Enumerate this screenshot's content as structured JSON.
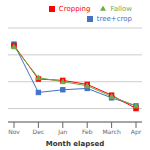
{
  "chart_data": {
    "type": "line",
    "categories": [
      "Nov",
      "Dec",
      "Jan",
      "Feb",
      "March",
      "Apr"
    ],
    "series": [
      {
        "name": "tree+crop",
        "color": "#4472C4",
        "marker": "square",
        "values": [
          98,
          62,
          64,
          65,
          58,
          52
        ]
      },
      {
        "name": "Cropping",
        "color": "#FF0000",
        "marker": "square",
        "values": [
          97,
          72,
          71,
          68,
          60,
          50
        ]
      },
      {
        "name": "Fallow",
        "color": "#70AD47",
        "marker": "triangle",
        "values": [
          96,
          73,
          70,
          67,
          59,
          52
        ]
      }
    ],
    "xlabel": "Month elapsed",
    "ylim": [
      40,
      110
    ],
    "yticks": [
      40,
      50,
      60,
      70,
      80,
      90,
      100,
      110
    ],
    "grid": true,
    "legend": "upper right",
    "tick_labels": "x"
  }
}
